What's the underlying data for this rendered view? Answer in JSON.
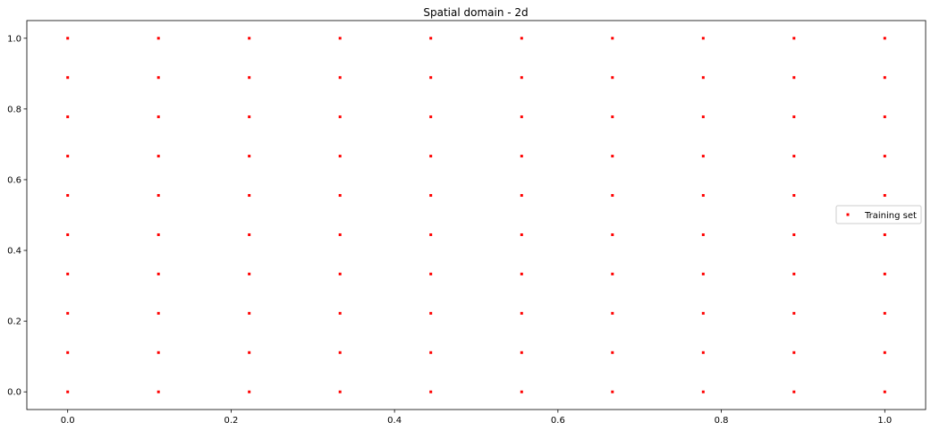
{
  "chart_data": {
    "type": "scatter",
    "title": "Spatial domain - 2d",
    "xlabel": "",
    "ylabel": "",
    "xlim": [
      -0.05,
      1.05
    ],
    "ylim": [
      -0.05,
      1.05
    ],
    "xticks": [
      0.0,
      0.2,
      0.4,
      0.6,
      0.8,
      1.0
    ],
    "yticks": [
      0.0,
      0.2,
      0.4,
      0.6,
      0.8,
      1.0
    ],
    "xtick_labels": [
      "0.0",
      "0.2",
      "0.4",
      "0.6",
      "0.8",
      "1.0"
    ],
    "ytick_labels": [
      "0.0",
      "0.2",
      "0.4",
      "0.6",
      "0.8",
      "1.0"
    ],
    "grid": false,
    "legend_position": "center-right",
    "series": [
      {
        "name": "Training set",
        "color": "#ff0000",
        "marker": "square",
        "grid_values": [
          0.0,
          0.1111,
          0.2222,
          0.3333,
          0.4444,
          0.5556,
          0.6667,
          0.7778,
          0.8889,
          1.0
        ]
      }
    ]
  }
}
